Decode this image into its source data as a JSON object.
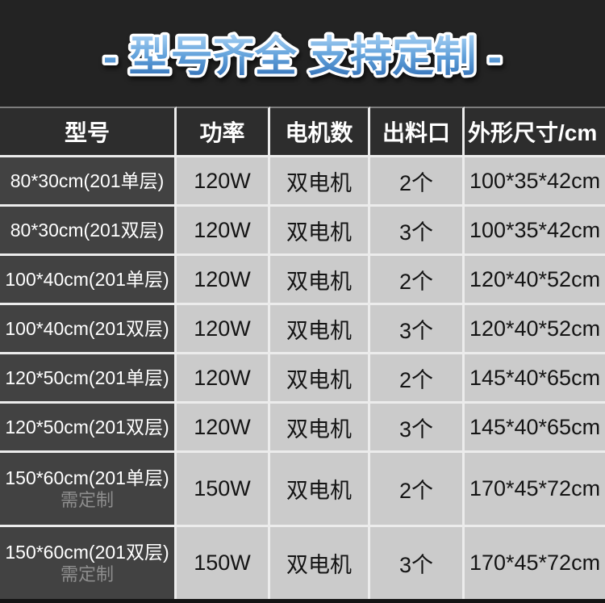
{
  "title": {
    "text": "- 型号齐全 支持定制 -"
  },
  "colors": {
    "page_bg": "#232323",
    "header_bg": "#2d2d2d",
    "model_col_bg": "#424242",
    "cell_bg": "#cbcbcb",
    "grid_line": "#ececec",
    "note_gray": "#8d8d8d",
    "title_stroke": "#ffffff",
    "title_gradient_top": "#a9d2f5",
    "title_gradient_mid": "#5f9fd9",
    "title_gradient_bottom": "#2e6cb3"
  },
  "table": {
    "headers": [
      "型号",
      "功率",
      "电机数",
      "出料口",
      "外形尺寸/cm"
    ],
    "rows": [
      {
        "model": "80*30cm(201单层)",
        "power": "120W",
        "motors": "双电机",
        "outlets": "2个",
        "dimensions": "100*35*42cm"
      },
      {
        "model": "80*30cm(201双层)",
        "power": "120W",
        "motors": "双电机",
        "outlets": "3个",
        "dimensions": "100*35*42cm"
      },
      {
        "model": "100*40cm(201单层)",
        "power": "120W",
        "motors": "双电机",
        "outlets": "2个",
        "dimensions": "120*40*52cm"
      },
      {
        "model": "100*40cm(201双层)",
        "power": "120W",
        "motors": "双电机",
        "outlets": "3个",
        "dimensions": "120*40*52cm"
      },
      {
        "model": "120*50cm(201单层)",
        "power": "120W",
        "motors": "双电机",
        "outlets": "2个",
        "dimensions": "145*40*65cm"
      },
      {
        "model": "120*50cm(201双层)",
        "power": "120W",
        "motors": "双电机",
        "outlets": "3个",
        "dimensions": "145*40*65cm"
      },
      {
        "model": "150*60cm(201单层)",
        "note": "需定制",
        "power": "150W",
        "motors": "双电机",
        "outlets": "2个",
        "dimensions": "170*45*72cm"
      },
      {
        "model": "150*60cm(201双层)",
        "note": "需定制",
        "power": "150W",
        "motors": "双电机",
        "outlets": "3个",
        "dimensions": "170*45*72cm"
      }
    ]
  }
}
